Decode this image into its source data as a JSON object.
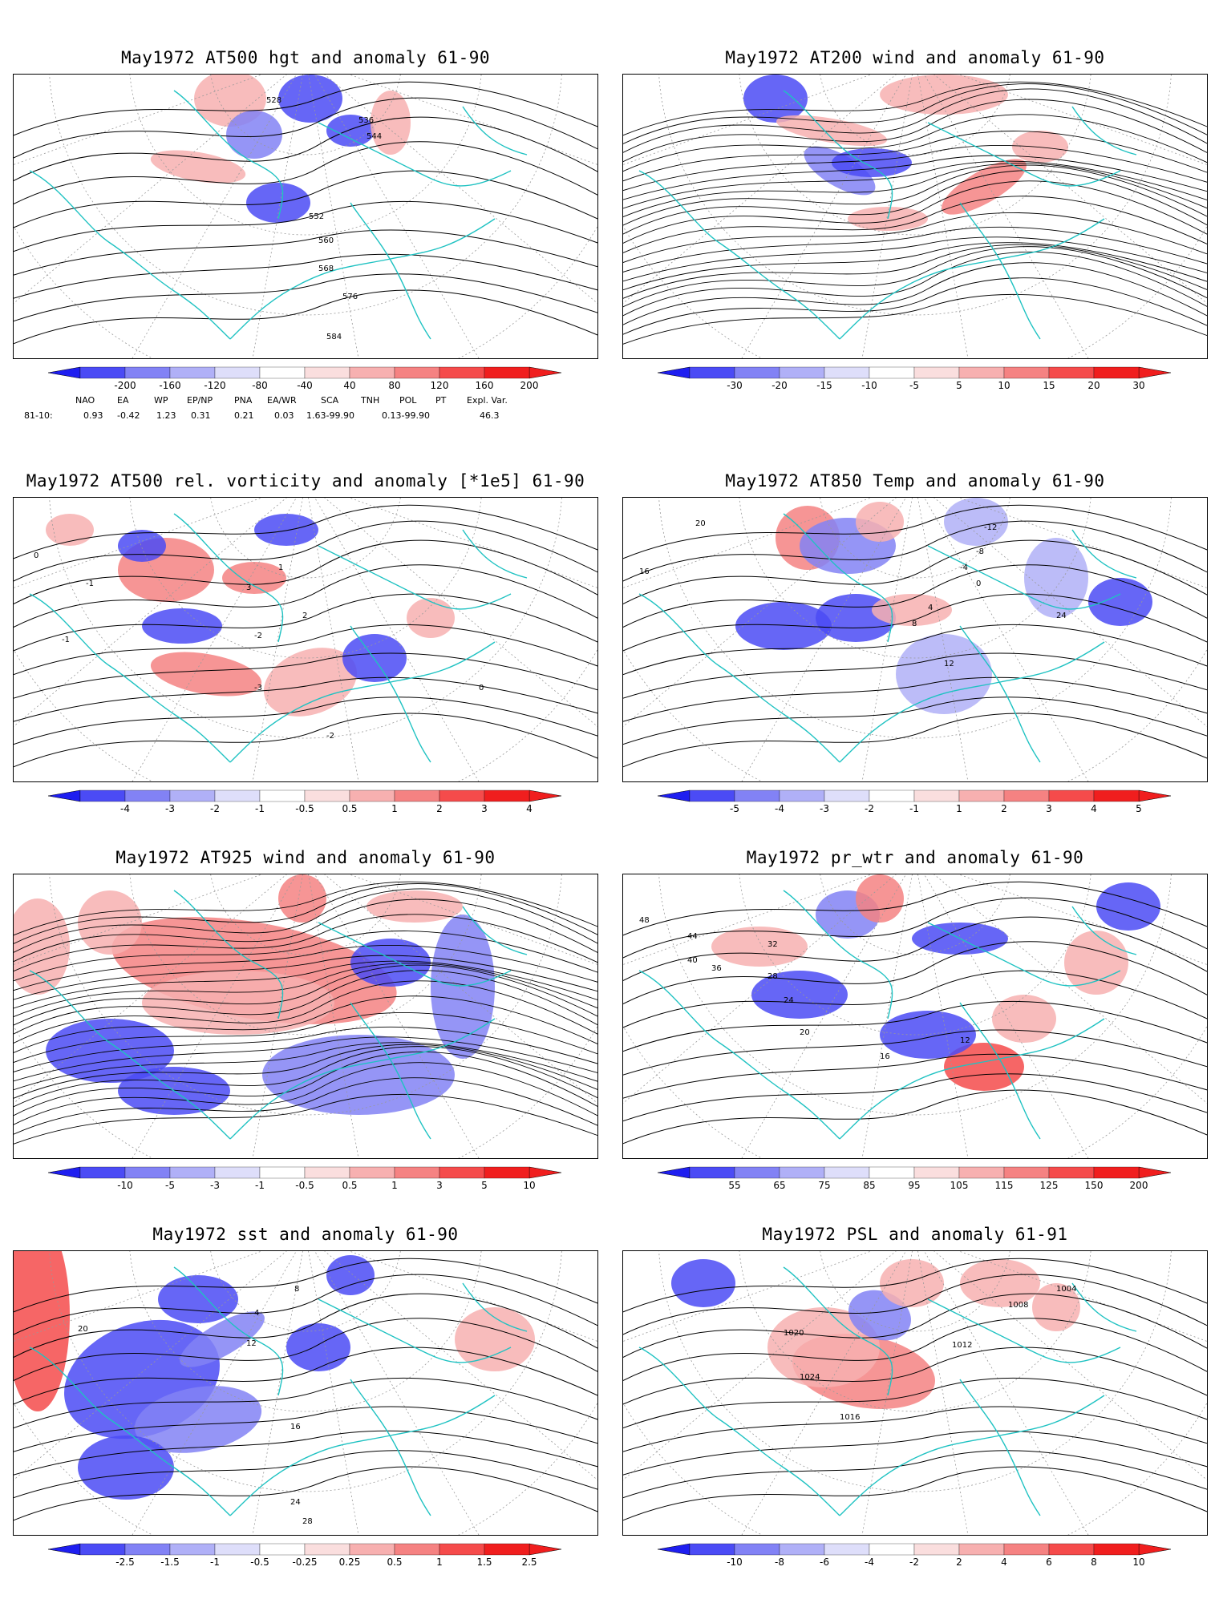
{
  "panels": [
    {
      "title": "May1972 AT500 hgt and anomaly 61-90",
      "field": "hgt",
      "contour_labels": [
        "528",
        "536",
        "544",
        "552",
        "560",
        "568",
        "576",
        "584"
      ],
      "colorbar": [
        "-200",
        "-160",
        "-120",
        "-80",
        "-40",
        "40",
        "80",
        "120",
        "160",
        "200"
      ]
    },
    {
      "title": "May1972 AT200 wind and anomaly 61-90",
      "field": "wind",
      "contour_labels": [],
      "colorbar": [
        "-30",
        "-20",
        "-15",
        "-10",
        "-5",
        "5",
        "10",
        "15",
        "20",
        "30"
      ]
    },
    {
      "title": "May1972 AT500 rel. vorticity and anomaly [*1e5] 61-90",
      "field": "vort",
      "contour_labels": [
        "0",
        "-1",
        "-2",
        "-3",
        "1",
        "2",
        "3",
        "-2",
        "-1",
        "0"
      ],
      "colorbar": [
        "-4",
        "-3",
        "-2",
        "-1",
        "-0.5",
        "0.5",
        "1",
        "2",
        "3",
        "4"
      ]
    },
    {
      "title": "May1972 AT850 Temp and anomaly 61-90",
      "field": "temp",
      "contour_labels": [
        "20",
        "16",
        "12",
        "8",
        "4",
        "0",
        "-4",
        "-8",
        "-12",
        "24"
      ],
      "colorbar": [
        "-5",
        "-4",
        "-3",
        "-2",
        "-1",
        "1",
        "2",
        "3",
        "4",
        "5"
      ]
    },
    {
      "title": "May1972 AT925 wind and anomaly 61-90",
      "field": "wind",
      "contour_labels": [],
      "colorbar": [
        "-10",
        "-5",
        "-3",
        "-1",
        "-0.5",
        "0.5",
        "1",
        "3",
        "5",
        "10"
      ]
    },
    {
      "title": "May1972 pr_wtr and anomaly 61-90",
      "field": "prwtr",
      "contour_labels": [
        "48",
        "44",
        "40",
        "36",
        "32",
        "28",
        "24",
        "20",
        "16",
        "12"
      ],
      "colorbar": [
        "55",
        "65",
        "75",
        "85",
        "95",
        "105",
        "115",
        "125",
        "150",
        "200"
      ]
    },
    {
      "title": "May1972 sst and anomaly 61-90",
      "field": "sst",
      "contour_labels": [
        "20",
        "16",
        "12",
        "8",
        "4",
        "24",
        "28"
      ],
      "colorbar": [
        "-2.5",
        "-1.5",
        "-1",
        "-0.5",
        "-0.25",
        "0.25",
        "0.5",
        "1",
        "1.5",
        "2.5"
      ]
    },
    {
      "title": "May1972 PSL and anomaly 61-91",
      "field": "psl",
      "contour_labels": [
        "1024",
        "1020",
        "1016",
        "1012",
        "1008",
        "1004"
      ],
      "colorbar": [
        "-10",
        "-8",
        "-6",
        "-4",
        "-2",
        "2",
        "4",
        "6",
        "8",
        "10"
      ]
    }
  ],
  "teleconnections": {
    "headers": [
      "NAO",
      "EA",
      "WP",
      "EP/NP",
      "PNA",
      "EA/WR",
      "SCA",
      "TNH",
      "POL",
      "PT",
      "Expl. Var."
    ],
    "row_label": "81-10:",
    "values": [
      "0.93",
      "-0.42",
      "1.23",
      "0.31",
      "0.21",
      "0.03",
      "1.63-99.90",
      "0.13-99.90",
      "46.3"
    ]
  },
  "colors": {
    "coast": "#1fc2c2",
    "neg": [
      "#1e1ef0",
      "#4b4bf5",
      "#8282f5",
      "#b0b0f7",
      "#dedefa"
    ],
    "pos": [
      "#fadede",
      "#f7b0b0",
      "#f58282",
      "#f54b4b",
      "#f01e1e"
    ],
    "contour": "#000000",
    "grid": "#999999"
  }
}
